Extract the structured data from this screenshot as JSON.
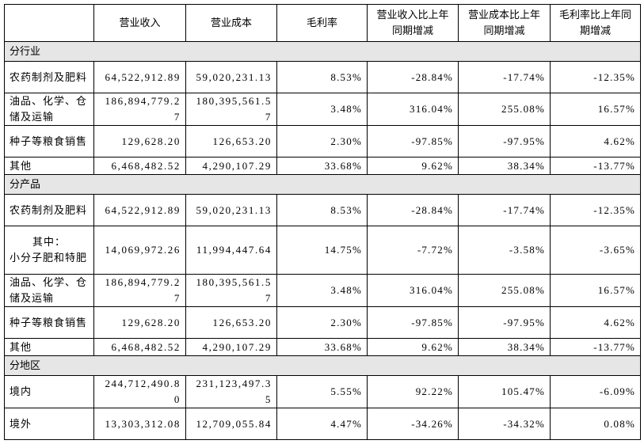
{
  "columns": [
    "营业收入",
    "营业成本",
    "毛利率",
    "营业收入比上年同期增减",
    "营业成本比上年同期增减",
    "毛利率比上年同期增减"
  ],
  "sections": [
    {
      "title": "分行业",
      "rows": [
        {
          "label": "农药制剂及肥料",
          "cells": [
            "64,522,912.89",
            "59,020,231.13",
            "8.53%",
            "-28.84%",
            "-17.74%",
            "-12.35%"
          ]
        },
        {
          "label": "油品、化学、仓储及运输",
          "cells": [
            "186,894,779.27",
            "180,395,561.57",
            "3.48%",
            "316.04%",
            "255.08%",
            "16.57%"
          ]
        },
        {
          "label": "种子等粮食销售",
          "cells": [
            "129,628.20",
            "126,653.20",
            "2.30%",
            "-97.85%",
            "-97.95%",
            "4.62%"
          ]
        },
        {
          "label": "其他",
          "cells": [
            "6,468,482.52",
            "4,290,107.29",
            "33.68%",
            "9.62%",
            "38.34%",
            "-13.77%"
          ]
        }
      ]
    },
    {
      "title": "分产品",
      "rows": [
        {
          "label": "农药制剂及肥料",
          "cells": [
            "64,522,912.89",
            "59,020,231.13",
            "8.53%",
            "-28.84%",
            "-17.74%",
            "-12.35%"
          ]
        },
        {
          "label": [
            "其中：",
            "小分子肥和特肥"
          ],
          "cells": [
            "14,069,972.26",
            "11,994,447.64",
            "14.75%",
            "-7.72%",
            "-3.58%",
            "-3.65%"
          ]
        },
        {
          "label": "油品、化学、仓储及运输",
          "cells": [
            "186,894,779.27",
            "180,395,561.57",
            "3.48%",
            "316.04%",
            "255.08%",
            "16.57%"
          ]
        },
        {
          "label": "种子等粮食销售",
          "cells": [
            "129,628.20",
            "126,653.20",
            "2.30%",
            "-97.85%",
            "-97.95%",
            "4.62%"
          ]
        },
        {
          "label": "其他",
          "cells": [
            "6,468,482.52",
            "4,290,107.29",
            "33.68%",
            "9.62%",
            "38.34%",
            "-13.77%"
          ]
        }
      ]
    },
    {
      "title": "分地区",
      "rows": [
        {
          "label": "境内",
          "cells": [
            "244,712,490.80",
            "231,123,497.35",
            "5.55%",
            "92.22%",
            "105.47%",
            "-6.09%"
          ]
        },
        {
          "label": "境外",
          "cells": [
            "13,303,312.08",
            "12,709,055.84",
            "4.47%",
            "-34.26%",
            "-34.32%",
            "0.08%"
          ]
        }
      ]
    }
  ]
}
